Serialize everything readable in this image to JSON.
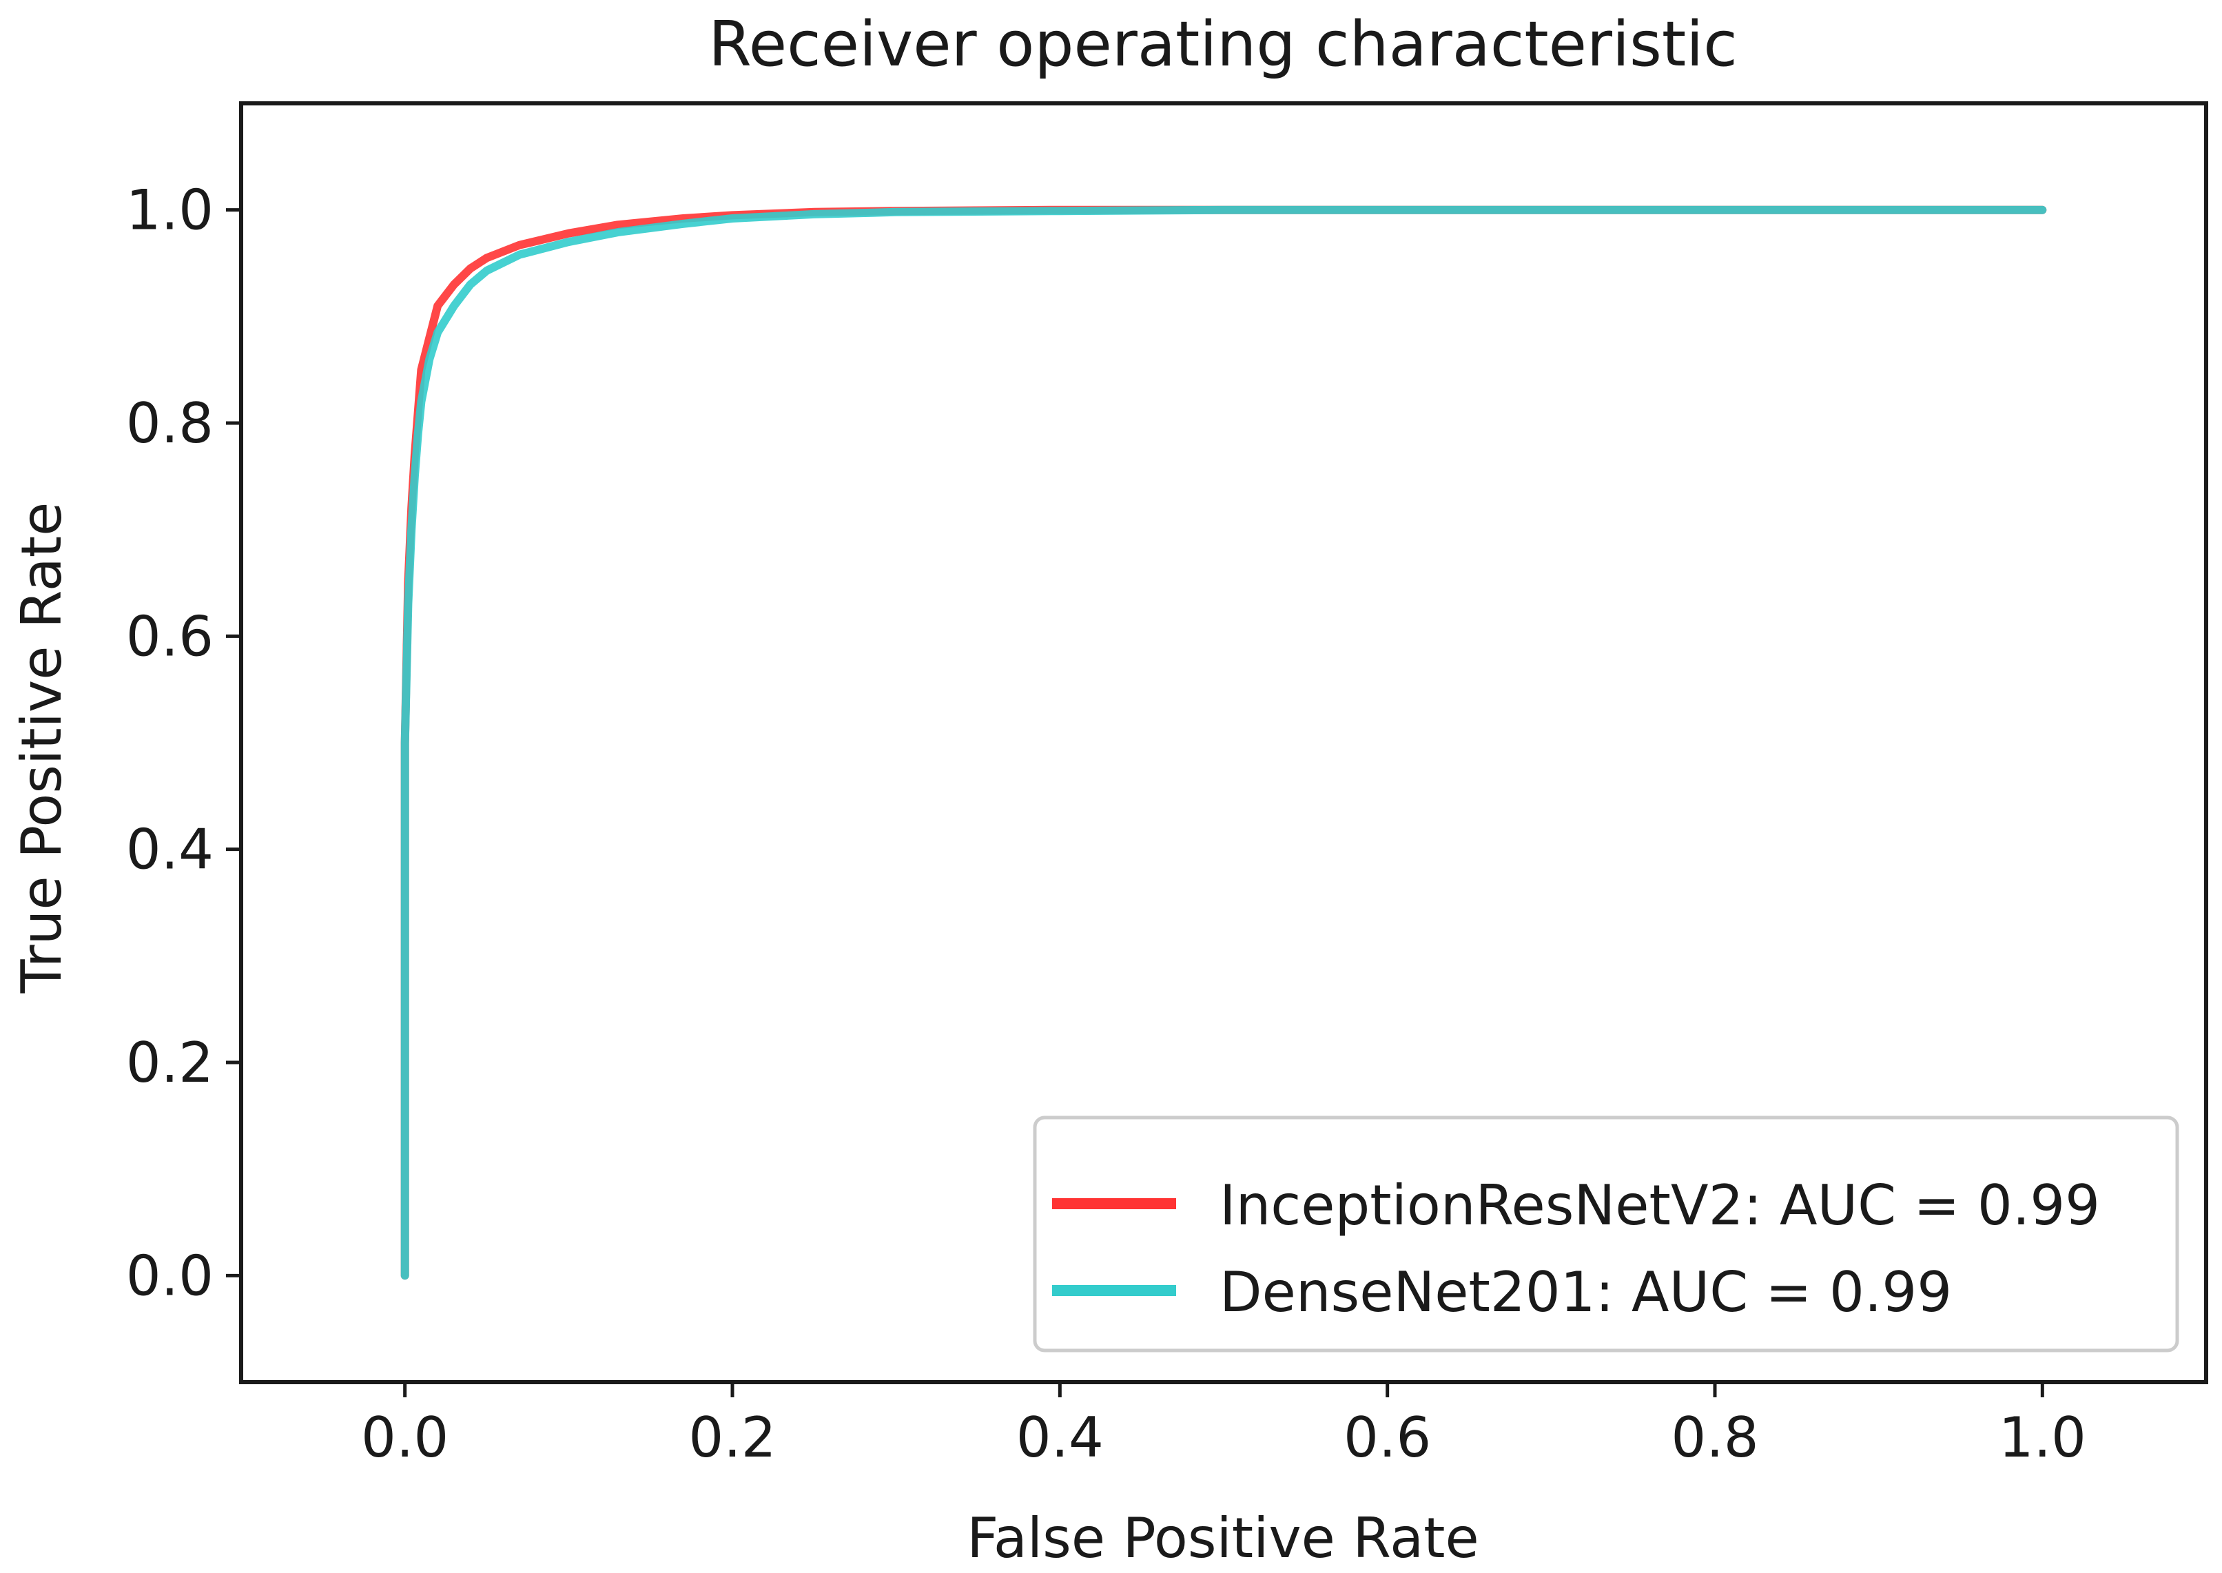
{
  "chart_data": {
    "type": "line",
    "title": "Receiver operating characteristic",
    "xlabel": "False Positive Rate",
    "ylabel": "True Positive Rate",
    "xlim": [
      -0.1,
      1.1
    ],
    "ylim": [
      -0.1,
      1.1
    ],
    "xticks": [
      "0.0",
      "0.2",
      "0.4",
      "0.6",
      "0.8",
      "1.0"
    ],
    "yticks": [
      "0.0",
      "0.2",
      "0.4",
      "0.6",
      "0.8",
      "1.0"
    ],
    "grid": false,
    "legend_position": "lower-right",
    "series": [
      {
        "name": "InceptionResNetV2: AUC = 0.99",
        "color": "#ff3333",
        "x": [
          0.0,
          0.0,
          0.002,
          0.004,
          0.006,
          0.008,
          0.01,
          0.015,
          0.02,
          0.03,
          0.04,
          0.05,
          0.07,
          0.1,
          0.13,
          0.17,
          0.2,
          0.25,
          0.3,
          0.4,
          0.5,
          1.0
        ],
        "y": [
          0.0,
          0.5,
          0.65,
          0.72,
          0.77,
          0.81,
          0.85,
          0.88,
          0.91,
          0.93,
          0.945,
          0.955,
          0.967,
          0.978,
          0.986,
          0.992,
          0.995,
          0.998,
          0.999,
          1.0,
          1.0,
          1.0
        ]
      },
      {
        "name": "DenseNet201: AUC = 0.99",
        "color": "#33cccc",
        "x": [
          0.0,
          0.0,
          0.002,
          0.004,
          0.006,
          0.008,
          0.01,
          0.015,
          0.02,
          0.03,
          0.04,
          0.05,
          0.07,
          0.1,
          0.13,
          0.17,
          0.2,
          0.25,
          0.3,
          0.4,
          0.5,
          1.0
        ],
        "y": [
          0.0,
          0.5,
          0.63,
          0.7,
          0.75,
          0.79,
          0.82,
          0.86,
          0.885,
          0.91,
          0.93,
          0.943,
          0.958,
          0.97,
          0.979,
          0.987,
          0.992,
          0.996,
          0.998,
          0.999,
          1.0,
          1.0
        ]
      }
    ]
  }
}
